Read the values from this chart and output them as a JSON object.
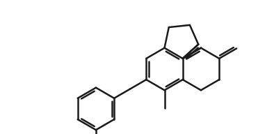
{
  "background": "#ffffff",
  "line_color": "#1a1a1a",
  "line_width": 1.8,
  "figsize": [
    3.94,
    1.92
  ],
  "dpi": 100,
  "xlim": [
    -4.3,
    4.6
  ],
  "ylim": [
    -2.6,
    2.6
  ]
}
